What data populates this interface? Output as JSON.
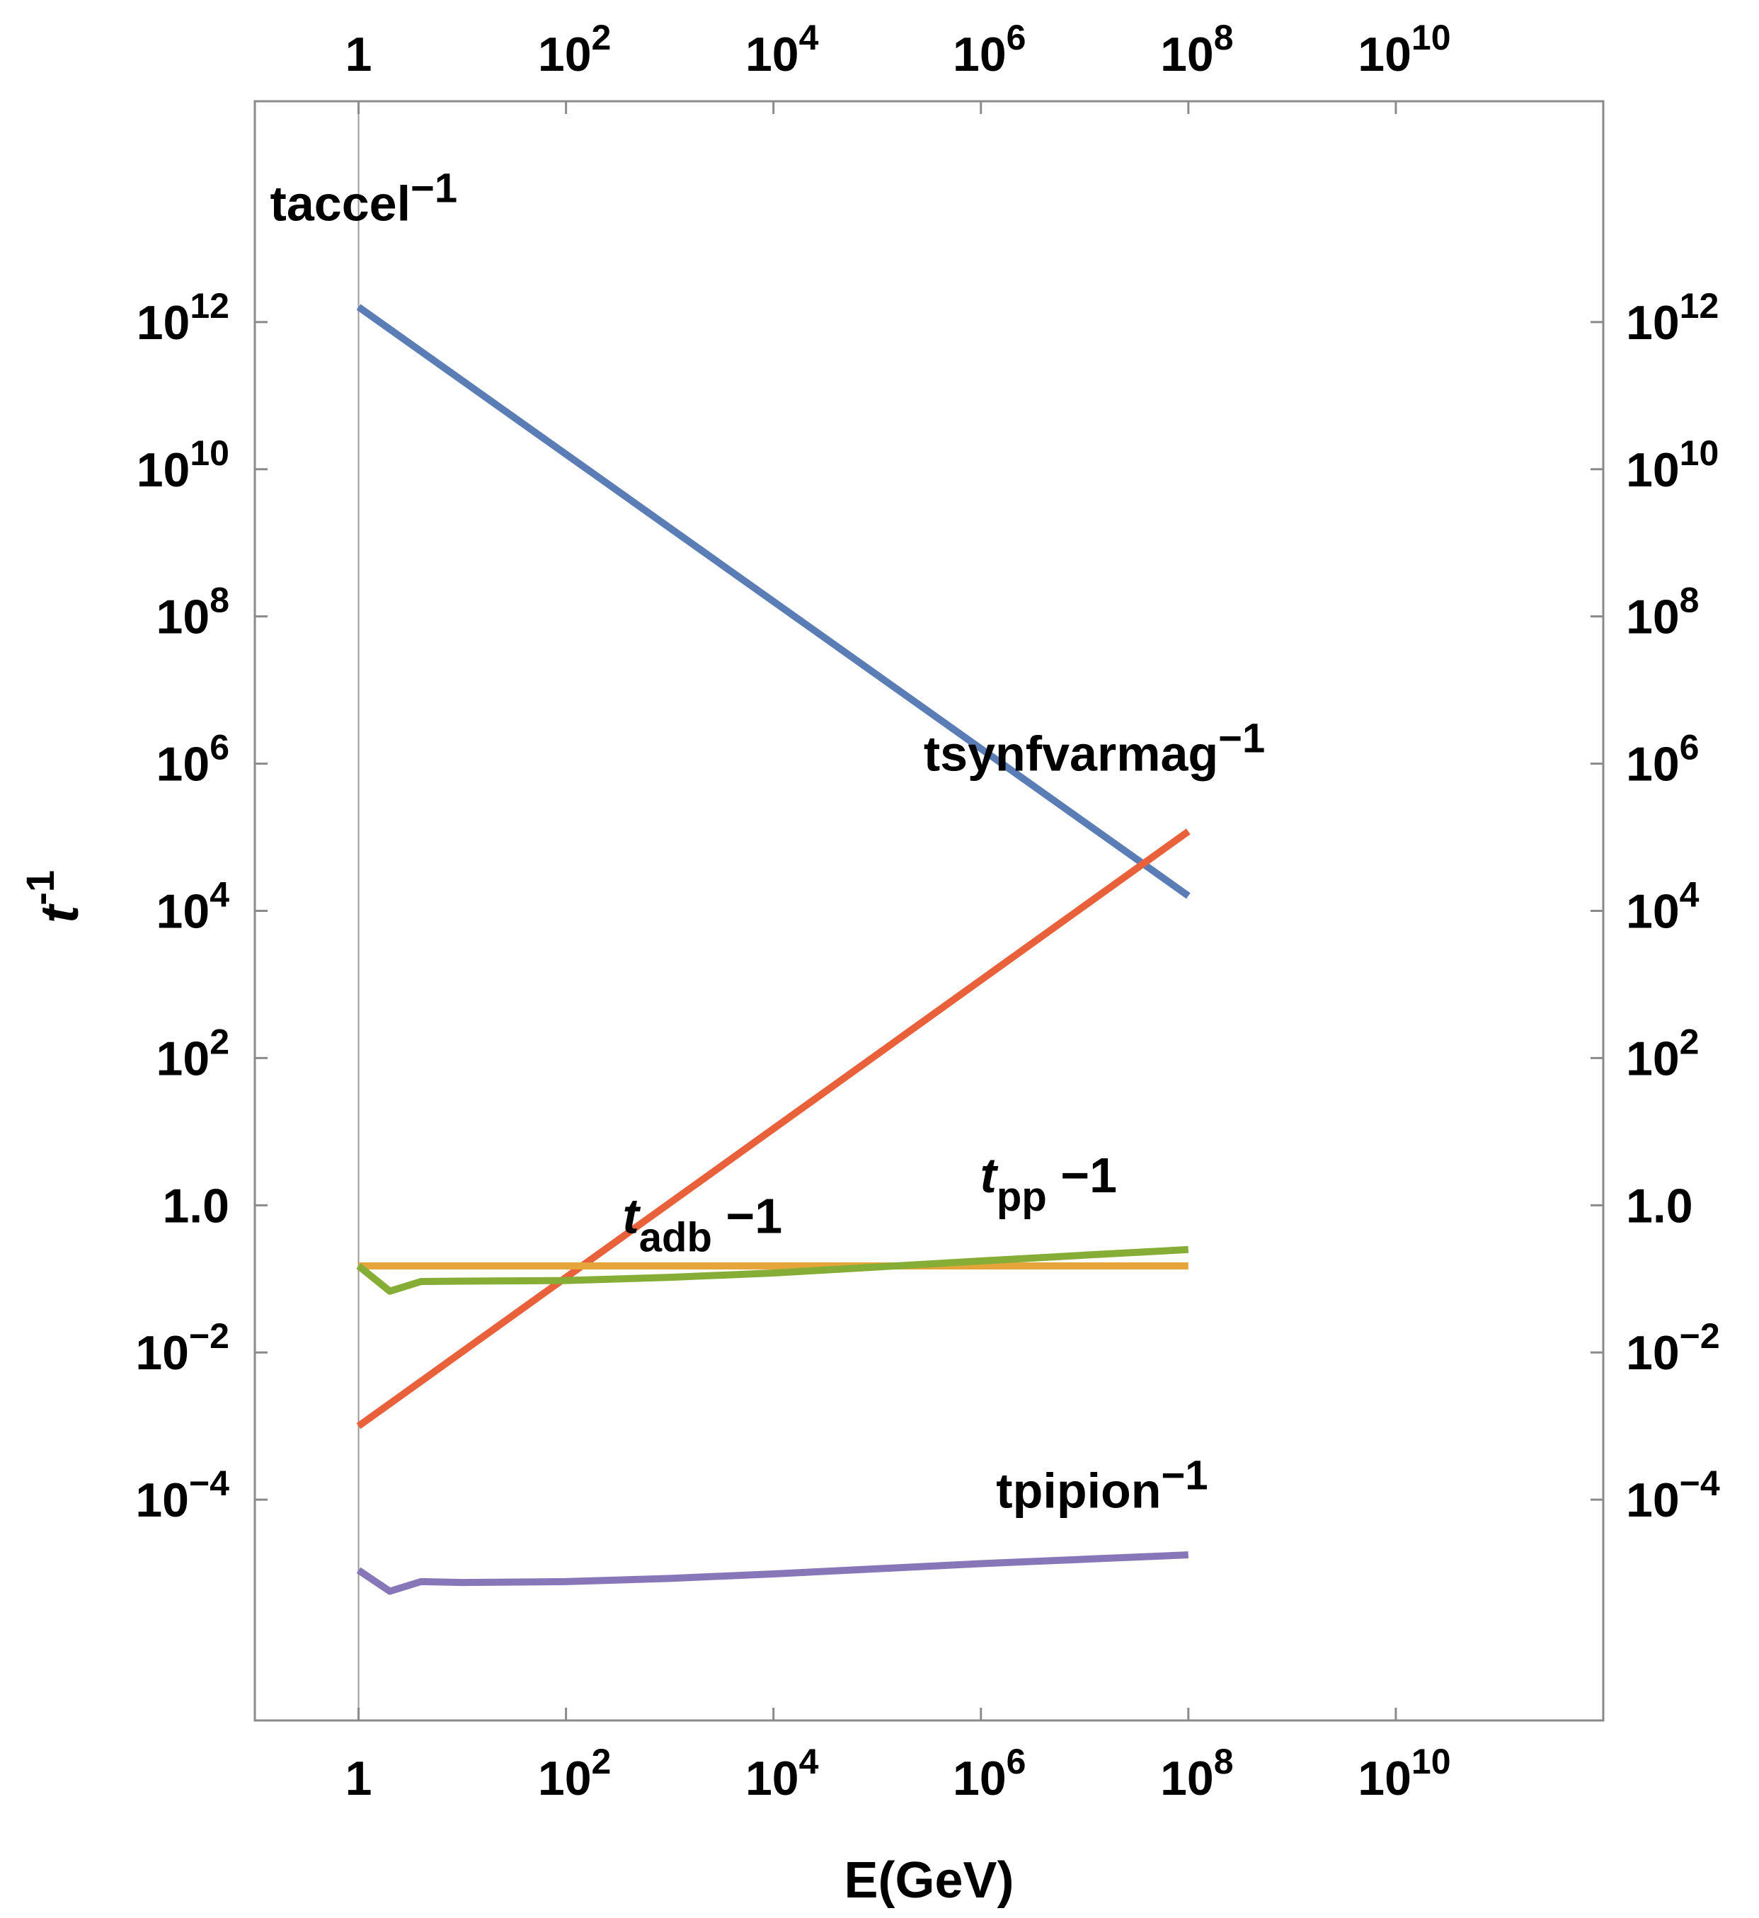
{
  "chart_data": {
    "type": "line",
    "title": "",
    "xlabel": "E(GeV)",
    "ylabel": "t",
    "ylabel_sup": "-1",
    "x_scale": "log",
    "y_scale": "log",
    "xlim": [
      0.1,
      1000000000000.0
    ],
    "ylim": [
      1e-07,
      1000000000000000.0
    ],
    "grid": false,
    "frame": "box",
    "x_ticks": [
      {
        "value": 1,
        "base": "1",
        "exp": ""
      },
      {
        "value": 100,
        "base": "10",
        "exp": "2"
      },
      {
        "value": 10000,
        "base": "10",
        "exp": "4"
      },
      {
        "value": 1000000,
        "base": "10",
        "exp": "6"
      },
      {
        "value": 100000000,
        "base": "10",
        "exp": "8"
      },
      {
        "value": 10000000000,
        "base": "10",
        "exp": "10"
      }
    ],
    "y_ticks": [
      {
        "value": 1000000000000.0,
        "base": "10",
        "exp": "12"
      },
      {
        "value": 10000000000.0,
        "base": "10",
        "exp": "10"
      },
      {
        "value": 100000000.0,
        "base": "10",
        "exp": "8"
      },
      {
        "value": 1000000.0,
        "base": "10",
        "exp": "6"
      },
      {
        "value": 10000.0,
        "base": "10",
        "exp": "4"
      },
      {
        "value": 100,
        "base": "10",
        "exp": "2"
      },
      {
        "value": 1,
        "base": "1.0",
        "exp": ""
      },
      {
        "value": 0.01,
        "base": "10",
        "exp": "−2"
      },
      {
        "value": 0.0001,
        "base": "10",
        "exp": "−4"
      }
    ],
    "series": [
      {
        "color": "#5B7DB6",
        "x": [
          1,
          100000000
        ],
        "y": [
          1600000000000.0,
          16000.0
        ]
      },
      {
        "color": "#E8613B",
        "x": [
          1,
          100000000
        ],
        "y": [
          0.001,
          120000.0
        ]
      },
      {
        "color": "#E6A53A",
        "x": [
          1,
          100000000
        ],
        "y": [
          0.15,
          0.15
        ]
      },
      {
        "color": "#86AD35",
        "x": [
          1,
          2,
          4,
          10,
          100,
          1000,
          10000,
          100000,
          1000000,
          10000000,
          100000000
        ],
        "y": [
          0.15,
          0.068,
          0.092,
          0.093,
          0.095,
          0.105,
          0.12,
          0.145,
          0.175,
          0.21,
          0.25
        ]
      },
      {
        "color": "#8877B8",
        "x": [
          1,
          2,
          4,
          10,
          100,
          1000,
          10000,
          100000,
          1000000,
          10000000,
          100000000
        ],
        "y": [
          1.1e-05,
          5.7e-06,
          7.7e-06,
          7.5e-06,
          7.7e-06,
          8.5e-06,
          9.8e-06,
          1.15e-05,
          1.35e-05,
          1.55e-05,
          1.78e-05
        ]
      }
    ],
    "annotations": [
      {
        "parts": [
          {
            "t": "taccel",
            "italic": false,
            "sub": false
          },
          {
            "t": "−1",
            "sup": true
          }
        ],
        "x": 1,
        "y": 24000000000000.0
      },
      {
        "parts": [
          {
            "t": "tsynfvarmag",
            "italic": false,
            "sub": false
          },
          {
            "t": "−1",
            "sup": true
          }
        ],
        "x": 2000000,
        "y": 800000
      },
      {
        "parts": [
          {
            "t": "t",
            "italic": true,
            "sub": false
          },
          {
            "t": "adb",
            "sub": true
          },
          {
            "t": " −1",
            "sup": false
          }
        ],
        "x": 2500,
        "y": 0.42
      },
      {
        "parts": [
          {
            "t": "t",
            "italic": true,
            "sub": false
          },
          {
            "t": "pp",
            "sub": true
          },
          {
            "t": " −1",
            "sup": false
          }
        ],
        "x": 7000000,
        "y": 1.5
      },
      {
        "parts": [
          {
            "t": "tpipion",
            "italic": false,
            "sub": false
          },
          {
            "t": "−1",
            "sup": true
          }
        ],
        "x": 10000000,
        "y": 7.8e-05
      }
    ]
  }
}
